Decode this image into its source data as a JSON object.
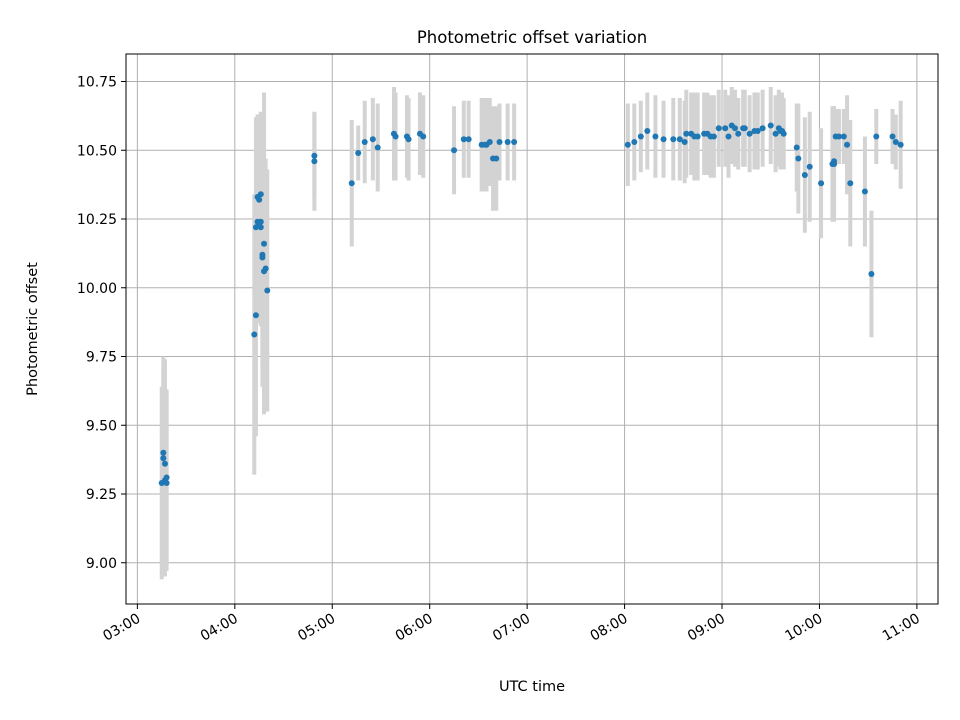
{
  "chart_data": {
    "type": "scatter",
    "title": "Photometric offset variation",
    "xlabel": "UTC time",
    "ylabel": "Photometric offset",
    "x_axis": {
      "type": "time",
      "range": [
        "02:53",
        "11:13"
      ]
    },
    "ylim": [
      8.85,
      10.85
    ],
    "x_ticks": [
      "03:00",
      "04:00",
      "05:00",
      "06:00",
      "07:00",
      "08:00",
      "09:00",
      "10:00",
      "11:00"
    ],
    "y_ticks": [
      "9.00",
      "9.25",
      "9.50",
      "9.75",
      "10.00",
      "10.25",
      "10.50",
      "10.75"
    ],
    "grid": true,
    "colors": {
      "points": "#1f77b4",
      "error_bars": "#d3d3d3",
      "grid": "#b0b0b0"
    },
    "series": [
      {
        "x": [
          "03:15",
          "03:16",
          "03:16",
          "03:17",
          "03:17",
          "03:18",
          "03:18",
          "04:12",
          "04:13",
          "04:13",
          "04:14",
          "04:14",
          "04:15",
          "04:15",
          "04:16",
          "04:16",
          "04:16",
          "04:17",
          "04:17",
          "04:18",
          "04:18",
          "04:19",
          "04:20",
          "04:49",
          "04:49",
          "05:12",
          "05:16",
          "05:20",
          "05:25",
          "05:28",
          "05:38",
          "05:39",
          "05:46",
          "05:47",
          "05:54",
          "05:56",
          "06:15",
          "06:21",
          "06:24",
          "06:32",
          "06:34",
          "06:35",
          "06:37",
          "06:39",
          "06:41",
          "06:43",
          "06:48",
          "06:52",
          "08:02",
          "08:06",
          "08:10",
          "08:14",
          "08:19",
          "08:24",
          "08:30",
          "08:34",
          "08:37",
          "08:38",
          "08:41",
          "08:43",
          "08:45",
          "08:49",
          "08:51",
          "08:53",
          "08:55",
          "08:58",
          "09:02",
          "09:04",
          "09:06",
          "09:08",
          "09:10",
          "09:13",
          "09:14",
          "09:17",
          "09:20",
          "09:22",
          "09:25",
          "09:30",
          "09:33",
          "09:35",
          "09:36",
          "09:37",
          "09:38",
          "09:46",
          "09:47",
          "09:51",
          "09:54",
          "10:01",
          "10:08",
          "10:09",
          "10:09",
          "10:10",
          "10:12",
          "10:15",
          "10:17",
          "10:19",
          "10:28",
          "10:32",
          "10:35",
          "10:45",
          "10:47",
          "10:50"
        ],
        "y": [
          9.29,
          9.38,
          9.4,
          9.36,
          9.3,
          9.31,
          9.29,
          9.83,
          9.9,
          10.22,
          10.24,
          10.33,
          10.23,
          10.32,
          10.34,
          10.22,
          10.24,
          10.11,
          10.12,
          10.16,
          10.06,
          10.07,
          9.99,
          10.46,
          10.48,
          10.38,
          10.49,
          10.53,
          10.54,
          10.51,
          10.56,
          10.55,
          10.55,
          10.54,
          10.56,
          10.55,
          10.5,
          10.54,
          10.54,
          10.52,
          10.52,
          10.52,
          10.53,
          10.47,
          10.47,
          10.53,
          10.53,
          10.53,
          10.52,
          10.53,
          10.55,
          10.57,
          10.55,
          10.54,
          10.54,
          10.54,
          10.53,
          10.56,
          10.56,
          10.55,
          10.55,
          10.56,
          10.56,
          10.55,
          10.55,
          10.58,
          10.58,
          10.55,
          10.59,
          10.58,
          10.56,
          10.58,
          10.58,
          10.56,
          10.57,
          10.57,
          10.58,
          10.59,
          10.56,
          10.58,
          10.57,
          10.57,
          10.56,
          10.51,
          10.47,
          10.41,
          10.44,
          10.38,
          10.45,
          10.45,
          10.46,
          10.55,
          10.55,
          10.55,
          10.52,
          10.38,
          10.35,
          10.05,
          10.55,
          10.55,
          10.53,
          10.52
        ],
        "err": [
          0.35,
          0.33,
          0.35,
          0.38,
          0.35,
          0.32,
          0.32,
          0.51,
          0.44,
          0.4,
          0.37,
          0.3,
          0.35,
          0.3,
          0.3,
          0.36,
          0.33,
          0.4,
          0.48,
          0.55,
          0.52,
          0.4,
          0.44,
          0.18,
          0.15,
          0.23,
          0.1,
          0.15,
          0.15,
          0.16,
          0.17,
          0.16,
          0.15,
          0.15,
          0.15,
          0.15,
          0.16,
          0.14,
          0.14,
          0.17,
          0.17,
          0.17,
          0.16,
          0.19,
          0.19,
          0.14,
          0.14,
          0.14,
          0.15,
          0.14,
          0.13,
          0.14,
          0.15,
          0.14,
          0.15,
          0.15,
          0.15,
          0.16,
          0.15,
          0.16,
          0.16,
          0.15,
          0.15,
          0.15,
          0.15,
          0.14,
          0.14,
          0.15,
          0.14,
          0.14,
          0.13,
          0.14,
          0.14,
          0.14,
          0.14,
          0.14,
          0.14,
          0.14,
          0.14,
          0.14,
          0.14,
          0.14,
          0.13,
          0.16,
          0.2,
          0.21,
          0.2,
          0.2,
          0.21,
          0.21,
          0.2,
          0.1,
          0.1,
          0.1,
          0.18,
          0.23,
          0.2,
          0.23,
          0.1,
          0.1,
          0.1,
          0.16
        ]
      }
    ]
  }
}
